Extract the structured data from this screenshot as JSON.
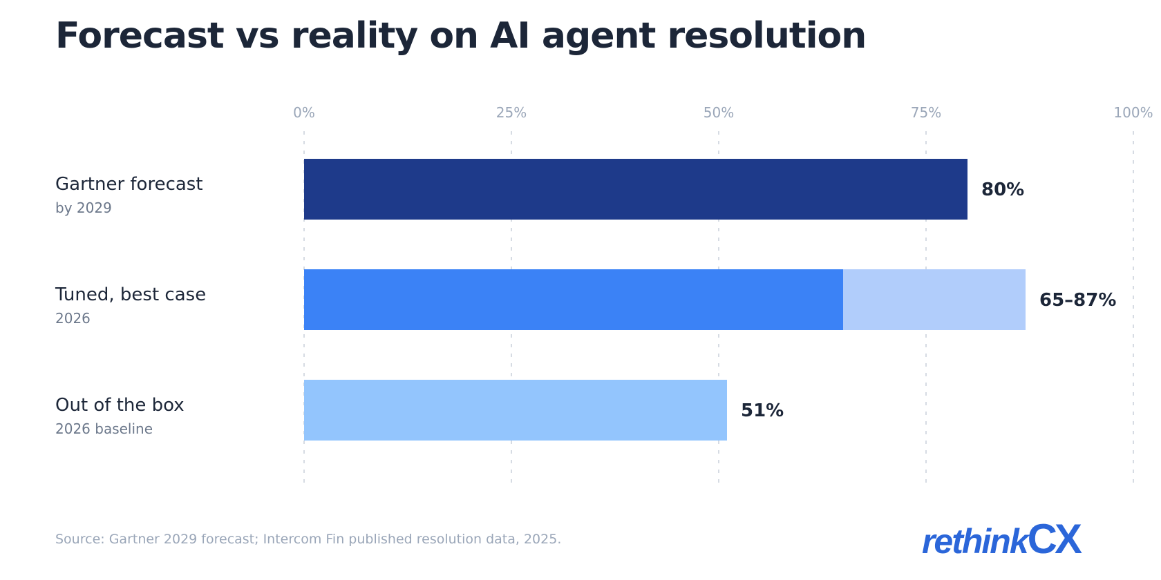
{
  "title": "Forecast vs reality on AI agent resolution",
  "source": "Source: Gartner 2029 forecast; Intercom Fin published resolution data, 2025.",
  "logo": {
    "part1": "rethink",
    "part2": "CX"
  },
  "colors": {
    "dark": "#1e3a8a",
    "blue": "#3b82f6",
    "pale": "#b1cdfb",
    "light": "#93c5fd",
    "logo": "#2b66d9"
  },
  "chart_data": {
    "type": "bar",
    "orientation": "horizontal",
    "xlim": [
      0,
      100
    ],
    "x_ticks": [
      0,
      25,
      50,
      75,
      100
    ],
    "x_tick_labels": [
      "0%",
      "25%",
      "50%",
      "75%",
      "100%"
    ],
    "grid": "vertical dashed",
    "categories": [
      {
        "label": "Gartner forecast",
        "sublabel": "by 2029",
        "value": 80,
        "value_label": "80%",
        "color": "#1e3a8a"
      },
      {
        "label": "Tuned, best case",
        "sublabel": "2026",
        "range": [
          65,
          87
        ],
        "value_label": "65–87%",
        "color": "#3b82f6",
        "range_color": "#b1cdfb"
      },
      {
        "label": "Out of the box",
        "sublabel": "2026 baseline",
        "value": 51,
        "value_label": "51%",
        "color": "#93c5fd"
      }
    ]
  }
}
